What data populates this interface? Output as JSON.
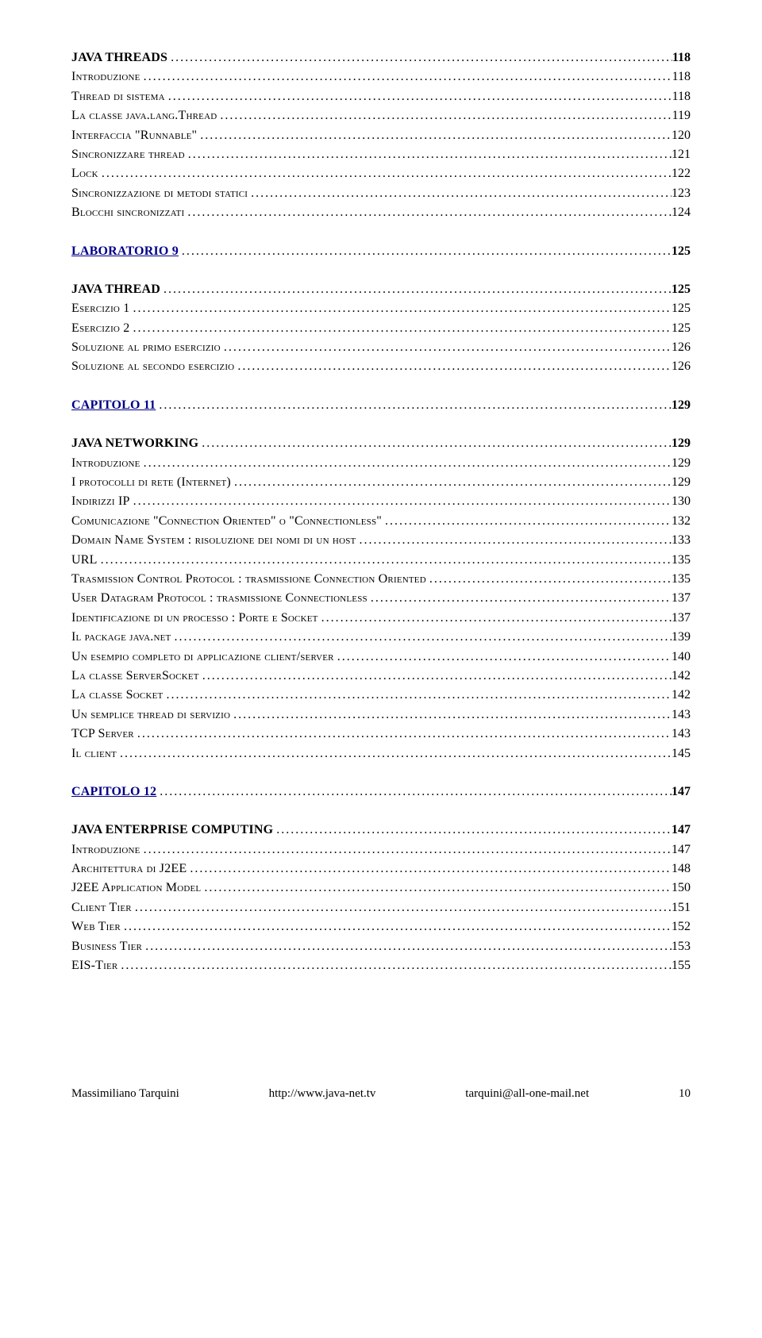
{
  "blocks": [
    {
      "style": "bold",
      "label": "JAVA THREADS",
      "page": "118"
    },
    {
      "style": "sc",
      "label": "Introduzione",
      "page": "118"
    },
    {
      "style": "sc",
      "label": "Thread di sistema",
      "page": "118"
    },
    {
      "style": "sc",
      "label": "La classe java.lang.Thread",
      "page": "119"
    },
    {
      "style": "sc",
      "label": "Interfaccia \"Runnable\"",
      "page": "120"
    },
    {
      "style": "sc",
      "label": "Sincronizzare  thread",
      "page": "121"
    },
    {
      "style": "sc",
      "label": "Lock",
      "page": "122"
    },
    {
      "style": "sc",
      "label": "Sincronizzazione di metodi statici",
      "page": "123"
    },
    {
      "style": "sc",
      "label": "Blocchi sincronizzati",
      "page": "124"
    },
    {
      "spacer": "md"
    },
    {
      "style": "link",
      "label": "LABORATORIO 9",
      "page": "125"
    },
    {
      "spacer": "md"
    },
    {
      "style": "bold",
      "label": "JAVA THREAD",
      "page": "125"
    },
    {
      "style": "sc",
      "label": "Esercizio 1",
      "page": "125"
    },
    {
      "style": "sc",
      "label": "Esercizio 2",
      "page": "125"
    },
    {
      "style": "sc",
      "label": "Soluzione al primo esercizio",
      "page": "126"
    },
    {
      "style": "sc",
      "label": "Soluzione al secondo esercizio",
      "page": "126"
    },
    {
      "spacer": "md"
    },
    {
      "style": "link",
      "label": "CAPITOLO 11",
      "page": "129"
    },
    {
      "spacer": "md"
    },
    {
      "style": "bold",
      "label": "JAVA NETWORKING",
      "page": "129"
    },
    {
      "style": "sc",
      "label": "Introduzione",
      "page": "129"
    },
    {
      "style": "sc",
      "label": "I protocolli di rete (Internet)",
      "page": "129"
    },
    {
      "style": "sc",
      "label": "Indirizzi IP",
      "page": "130"
    },
    {
      "style": "sc",
      "label": "Comunicazione \"Connection Oriented\" o \"Connectionless\"",
      "page": "132"
    },
    {
      "style": "sc",
      "label": "Domain Name System : risoluzione dei nomi di un host",
      "page": "133"
    },
    {
      "style": "sc",
      "label": "URL",
      "page": "135"
    },
    {
      "style": "sc",
      "label": "Trasmission Control Protocol : trasmissione Connection Oriented",
      "page": "135"
    },
    {
      "style": "sc",
      "label": "User Datagram Protocol : trasmissione Connectionless",
      "page": "137"
    },
    {
      "style": "sc",
      "label": "Identificazione di un processo : Porte e Socket",
      "page": "137"
    },
    {
      "style": "sc",
      "label": "Il package java.net",
      "page": "139"
    },
    {
      "style": "sc",
      "label": "Un esempio completo di applicazione client/server",
      "page": "140"
    },
    {
      "style": "sc",
      "label": "La classe ServerSocket",
      "page": "142"
    },
    {
      "style": "sc",
      "label": "La classe Socket",
      "page": "142"
    },
    {
      "style": "sc",
      "label": "Un semplice thread di servizio",
      "page": "143"
    },
    {
      "style": "sc",
      "label": "TCP Server",
      "page": "143"
    },
    {
      "style": "sc",
      "label": "Il client",
      "page": "145"
    },
    {
      "spacer": "md"
    },
    {
      "style": "link",
      "label": "CAPITOLO 12",
      "page": "147"
    },
    {
      "spacer": "md"
    },
    {
      "style": "bold",
      "label": "JAVA ENTERPRISE COMPUTING",
      "page": "147"
    },
    {
      "style": "sc",
      "label": "Introduzione",
      "page": "147"
    },
    {
      "style": "sc",
      "label": "Architettura di J2EE",
      "page": "148"
    },
    {
      "style": "sc",
      "label": "J2EE Application Model",
      "page": "150"
    },
    {
      "style": "sc",
      "label": "Client Tier",
      "page": "151"
    },
    {
      "style": "sc",
      "label": "Web Tier",
      "page": "152"
    },
    {
      "style": "sc",
      "label": "Business Tier",
      "page": "153"
    },
    {
      "style": "sc",
      "label": "EIS-Tier",
      "page": "155"
    }
  ],
  "footer": {
    "left": "Massimiliano Tarquini",
    "center": "http://www.java-net.tv",
    "right": "tarquini@all-one-mail.net",
    "page": "10"
  }
}
